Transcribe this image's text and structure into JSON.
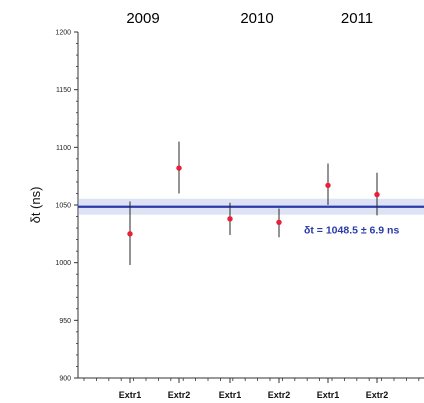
{
  "chart_data": {
    "type": "scatter",
    "title": "",
    "xlabel": "",
    "ylabel": "δt (ns)",
    "ylim": [
      900,
      1200
    ],
    "yticks": [
      900,
      950,
      1000,
      1050,
      1100,
      1150,
      1200
    ],
    "grid": false,
    "categories": [
      "Extr1",
      "Extr2",
      "Extr1",
      "Extr2",
      "Extr1",
      "Extr2"
    ],
    "groups": [
      "2009",
      "2010",
      "2011"
    ],
    "series": [
      {
        "values": [
          1025,
          1082,
          1038,
          1035,
          1067,
          1059
        ],
        "error_low": [
          998,
          1060,
          1024,
          1022,
          1050,
          1041
        ],
        "error_high": [
          1053,
          1105,
          1052,
          1047,
          1086,
          1078
        ],
        "color": "#e8203a"
      }
    ],
    "reference_line": {
      "value": 1048.5,
      "uncertainty": 6.9,
      "label": "δt = 1048.5 ± 6.9 ns",
      "color": "#2b3aa8"
    }
  }
}
